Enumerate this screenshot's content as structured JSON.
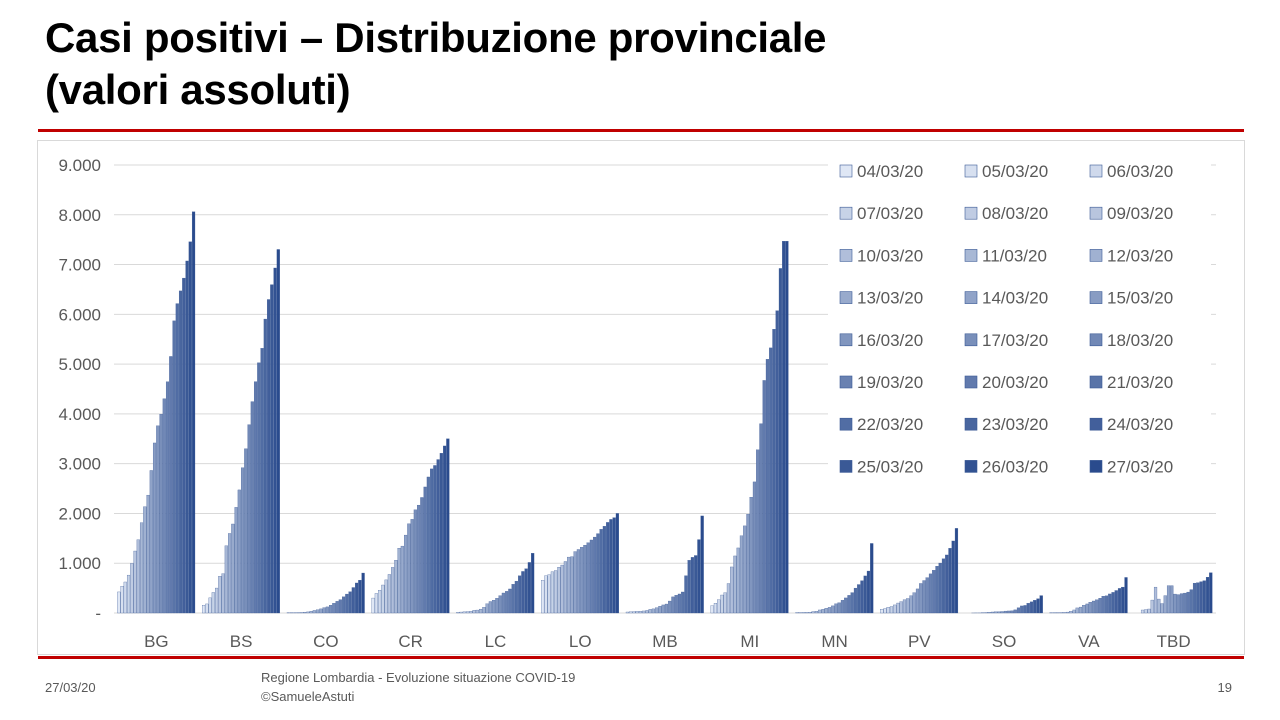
{
  "slide": {
    "title_line1": "Casi positivi – Distribuzione provinciale",
    "title_line2": "(valori assoluti)"
  },
  "footer": {
    "date": "27/03/20",
    "source_line1": "Regione Lombardia - Evoluzione situazione COVID-19",
    "source_line2": "©SamueleAstuti",
    "page": "19"
  },
  "colors": {
    "accent_rule": "#c00000",
    "grid": "#d9d9d9",
    "light_series": "#dfe7f5",
    "dark_series": "#2a4b8d"
  },
  "chart_data": {
    "type": "bar",
    "categories": [
      "BG",
      "BS",
      "CO",
      "CR",
      "LC",
      "LO",
      "MB",
      "MI",
      "MN",
      "PV",
      "SO",
      "VA",
      "TBD"
    ],
    "yticks": [
      "-",
      "1.000",
      "2.000",
      "3.000",
      "4.000",
      "5.000",
      "6.000",
      "7.000",
      "8.000",
      "9.000"
    ],
    "ylim": [
      0,
      9000
    ],
    "grid": true,
    "legend_position": "top-right",
    "series": [
      {
        "name": "04/03/20",
        "values": [
          423,
          155,
          4,
          300,
          15,
          658,
          20,
          145,
          10,
          75,
          0,
          4,
          0
        ]
      },
      {
        "name": "05/03/20",
        "values": [
          537,
          182,
          7,
          394,
          19,
          750,
          25,
          197,
          10,
          90,
          0,
          5,
          0
        ]
      },
      {
        "name": "06/03/20",
        "values": [
          623,
          304,
          7,
          457,
          24,
          770,
          29,
          267,
          11,
          116,
          1,
          8,
          60
        ]
      },
      {
        "name": "07/03/20",
        "values": [
          761,
          413,
          9,
          562,
          29,
          830,
          33,
          361,
          12,
          130,
          2,
          9,
          70
        ]
      },
      {
        "name": "08/03/20",
        "values": [
          997,
          501,
          11,
          665,
          36,
          853,
          34,
          406,
          15,
          162,
          2,
          12,
          80
        ]
      },
      {
        "name": "09/03/20",
        "values": [
          1245,
          739,
          17,
          775,
          56,
          921,
          41,
          592,
          30,
          200,
          5,
          18,
          260
        ]
      },
      {
        "name": "10/03/20",
        "values": [
          1472,
          790,
          22,
          916,
          59,
          963,
          52,
          925,
          35,
          229,
          9,
          35,
          520
        ]
      },
      {
        "name": "11/03/20",
        "values": [
          1815,
          1351,
          37,
          1061,
          78,
          1035,
          73,
          1146,
          61,
          267,
          15,
          61,
          280
        ]
      },
      {
        "name": "12/03/20",
        "values": [
          2136,
          1598,
          52,
          1302,
          114,
          1123,
          83,
          1307,
          75,
          291,
          20,
          102,
          190
        ]
      },
      {
        "name": "13/03/20",
        "values": [
          2368,
          1788,
          65,
          1344,
          184,
          1133,
          107,
          1550,
          96,
          348,
          24,
          119,
          350
        ]
      },
      {
        "name": "14/03/20",
        "values": [
          2864,
          2122,
          83,
          1565,
          231,
          1234,
          137,
          1750,
          113,
          409,
          26,
          156,
          550
        ]
      },
      {
        "name": "15/03/20",
        "values": [
          3416,
          2473,
          108,
          1792,
          257,
          1276,
          162,
          1983,
          143,
          484,
          30,
          182,
          550
        ]
      },
      {
        "name": "16/03/20",
        "values": [
          3760,
          2918,
          123,
          1881,
          296,
          1320,
          180,
          2326,
          184,
          593,
          38,
          217,
          380
        ]
      },
      {
        "name": "17/03/20",
        "values": [
          3993,
          3300,
          156,
          2073,
          349,
          1362,
          240,
          2634,
          206,
          652,
          41,
          241,
          370
        ]
      },
      {
        "name": "18/03/20",
        "values": [
          4305,
          3784,
          195,
          2167,
          402,
          1412,
          324,
          3278,
          255,
          711,
          44,
          265,
          390
        ]
      },
      {
        "name": "19/03/20",
        "values": [
          4645,
          4247,
          234,
          2321,
          435,
          1467,
          356,
          3804,
          303,
          786,
          63,
          297,
          400
        ]
      },
      {
        "name": "20/03/20",
        "values": [
          5154,
          4648,
          269,
          2532,
          483,
          1525,
          382,
          4672,
          354,
          858,
          105,
          338,
          420
        ]
      },
      {
        "name": "21/03/20",
        "values": [
          5869,
          5028,
          325,
          2733,
          577,
          1595,
          422,
          5096,
          410,
          940,
          142,
          345,
          470
        ]
      },
      {
        "name": "22/03/20",
        "values": [
          6216,
          5317,
          380,
          2895,
          640,
          1681,
          750,
          5326,
          500,
          1003,
          152,
          383,
          600
        ]
      },
      {
        "name": "23/03/20",
        "values": [
          6471,
          5905,
          428,
          2964,
          748,
          1743,
          1059,
          5701,
          572,
          1090,
          196,
          414,
          610
        ]
      },
      {
        "name": "24/03/20",
        "values": [
          6728,
          6298,
          512,
          3083,
          835,
          1820,
          1118,
          6074,
          649,
          1166,
          224,
          452,
          630
        ]
      },
      {
        "name": "25/03/20",
        "values": [
          7072,
          6597,
          603,
          3210,
          890,
          1880,
          1155,
          6922,
          745,
          1300,
          256,
          494,
          650
        ]
      },
      {
        "name": "26/03/20",
        "values": [
          7458,
          6931,
          660,
          3356,
          1016,
          1916,
          1475,
          7469,
          843,
          1447,
          287,
          520,
          720
        ]
      },
      {
        "name": "27/03/20",
        "values": [
          8060,
          7303,
          803,
          3500,
          1200,
          2000,
          1950,
          7469,
          1397,
          1700,
          350,
          714,
          810
        ]
      }
    ]
  }
}
